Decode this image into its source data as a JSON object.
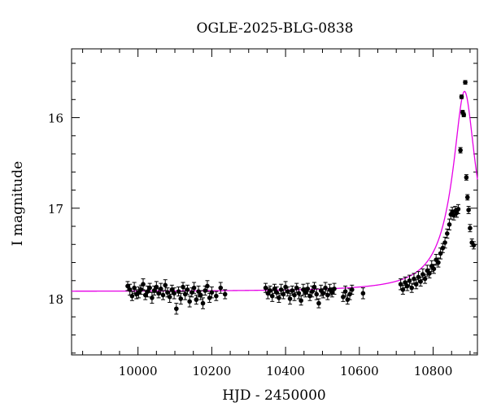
{
  "chart_data": {
    "type": "scatter",
    "title": "OGLE-2025-BLG-0838",
    "xlabel": "HJD - 2450000",
    "ylabel": "I magnitude",
    "xlim": [
      9820,
      10920
    ],
    "ylim": [
      18.62,
      15.24
    ],
    "y_inverted": true,
    "x_ticks": [
      10000,
      10200,
      10400,
      10600,
      10800
    ],
    "y_ticks": [
      16,
      17,
      18
    ],
    "grid": false,
    "legend": "none",
    "colors": {
      "data": "#000000",
      "model": "#e600e6",
      "axes": "#000000"
    },
    "series": [
      {
        "kind": "points_with_errorbars",
        "points": [
          [
            9972,
            17.86,
            0.05
          ],
          [
            9978,
            17.9,
            0.06
          ],
          [
            9984,
            17.97,
            0.05
          ],
          [
            9990,
            17.88,
            0.06
          ],
          [
            9996,
            17.95,
            0.05
          ],
          [
            10002,
            17.93,
            0.06
          ],
          [
            10008,
            17.9,
            0.05
          ],
          [
            10014,
            17.84,
            0.06
          ],
          [
            10020,
            17.96,
            0.05
          ],
          [
            10026,
            17.92,
            0.06
          ],
          [
            10032,
            17.88,
            0.05
          ],
          [
            10038,
            17.99,
            0.06
          ],
          [
            10044,
            17.91,
            0.05
          ],
          [
            10050,
            17.87,
            0.06
          ],
          [
            10056,
            17.94,
            0.05
          ],
          [
            10062,
            17.89,
            0.06
          ],
          [
            10068,
            17.96,
            0.05
          ],
          [
            10074,
            17.85,
            0.06
          ],
          [
            10080,
            17.93,
            0.05
          ],
          [
            10086,
            17.98,
            0.06
          ],
          [
            10092,
            17.9,
            0.05
          ],
          [
            10098,
            17.94,
            0.06
          ],
          [
            10104,
            18.11,
            0.06
          ],
          [
            10110,
            17.92,
            0.05
          ],
          [
            10116,
            18.0,
            0.06
          ],
          [
            10122,
            17.87,
            0.05
          ],
          [
            10128,
            17.95,
            0.06
          ],
          [
            10134,
            17.9,
            0.05
          ],
          [
            10140,
            18.03,
            0.06
          ],
          [
            10146,
            17.93,
            0.05
          ],
          [
            10152,
            17.88,
            0.06
          ],
          [
            10158,
            18.01,
            0.05
          ],
          [
            10164,
            17.92,
            0.06
          ],
          [
            10170,
            17.96,
            0.05
          ],
          [
            10176,
            18.05,
            0.06
          ],
          [
            10182,
            17.91,
            0.05
          ],
          [
            10188,
            17.86,
            0.06
          ],
          [
            10194,
            17.99,
            0.05
          ],
          [
            10200,
            17.93,
            0.06
          ],
          [
            10212,
            17.97,
            0.05
          ],
          [
            10224,
            17.88,
            0.06
          ],
          [
            10236,
            17.95,
            0.05
          ],
          [
            10346,
            17.88,
            0.05
          ],
          [
            10352,
            17.94,
            0.06
          ],
          [
            10358,
            17.91,
            0.05
          ],
          [
            10364,
            17.97,
            0.06
          ],
          [
            10370,
            17.89,
            0.05
          ],
          [
            10376,
            17.93,
            0.06
          ],
          [
            10382,
            17.99,
            0.05
          ],
          [
            10388,
            17.9,
            0.06
          ],
          [
            10394,
            17.95,
            0.05
          ],
          [
            10400,
            17.87,
            0.06
          ],
          [
            10406,
            17.92,
            0.05
          ],
          [
            10412,
            18.0,
            0.06
          ],
          [
            10418,
            17.91,
            0.05
          ],
          [
            10424,
            17.96,
            0.06
          ],
          [
            10430,
            17.88,
            0.05
          ],
          [
            10436,
            17.94,
            0.06
          ],
          [
            10442,
            18.02,
            0.05
          ],
          [
            10448,
            17.9,
            0.06
          ],
          [
            10454,
            17.93,
            0.05
          ],
          [
            10460,
            17.89,
            0.06
          ],
          [
            10466,
            17.97,
            0.05
          ],
          [
            10472,
            17.92,
            0.06
          ],
          [
            10478,
            17.87,
            0.05
          ],
          [
            10484,
            17.95,
            0.06
          ],
          [
            10490,
            18.05,
            0.05
          ],
          [
            10496,
            17.91,
            0.06
          ],
          [
            10502,
            17.94,
            0.05
          ],
          [
            10508,
            17.88,
            0.06
          ],
          [
            10514,
            17.96,
            0.05
          ],
          [
            10520,
            17.9,
            0.06
          ],
          [
            10526,
            17.93,
            0.05
          ],
          [
            10532,
            17.89,
            0.06
          ],
          [
            10556,
            17.98,
            0.05
          ],
          [
            10562,
            17.92,
            0.06
          ],
          [
            10568,
            18.01,
            0.05
          ],
          [
            10574,
            17.95,
            0.06
          ],
          [
            10580,
            17.9,
            0.05
          ],
          [
            10610,
            17.94,
            0.06
          ],
          [
            10712,
            17.84,
            0.06
          ],
          [
            10718,
            17.9,
            0.05
          ],
          [
            10724,
            17.82,
            0.06
          ],
          [
            10730,
            17.86,
            0.05
          ],
          [
            10736,
            17.8,
            0.06
          ],
          [
            10742,
            17.88,
            0.05
          ],
          [
            10748,
            17.78,
            0.06
          ],
          [
            10754,
            17.84,
            0.05
          ],
          [
            10760,
            17.76,
            0.06
          ],
          [
            10766,
            17.81,
            0.05
          ],
          [
            10772,
            17.73,
            0.06
          ],
          [
            10778,
            17.78,
            0.05
          ],
          [
            10784,
            17.69,
            0.06
          ],
          [
            10790,
            17.72,
            0.05
          ],
          [
            10796,
            17.64,
            0.06
          ],
          [
            10802,
            17.67,
            0.05
          ],
          [
            10808,
            17.57,
            0.06
          ],
          [
            10814,
            17.6,
            0.05
          ],
          [
            10820,
            17.5,
            0.06
          ],
          [
            10826,
            17.44,
            0.05
          ],
          [
            10832,
            17.38,
            0.06
          ],
          [
            10838,
            17.28,
            0.05
          ],
          [
            10844,
            17.18,
            0.06
          ],
          [
            10848,
            17.07,
            0.05
          ],
          [
            10852,
            17.04,
            0.05
          ],
          [
            10856,
            17.08,
            0.05
          ],
          [
            10860,
            17.03,
            0.05
          ],
          [
            10864,
            17.05,
            0.05
          ],
          [
            10868,
            17.01,
            0.05
          ],
          [
            10874,
            16.36,
            0.03
          ],
          [
            10877,
            15.77,
            0.02
          ],
          [
            10880,
            15.94,
            0.02
          ],
          [
            10883,
            15.97,
            0.02
          ],
          [
            10887,
            15.61,
            0.02
          ],
          [
            10890,
            16.66,
            0.03
          ],
          [
            10893,
            16.88,
            0.03
          ],
          [
            10896,
            17.02,
            0.04
          ],
          [
            10900,
            17.22,
            0.04
          ],
          [
            10905,
            17.38,
            0.04
          ],
          [
            10910,
            17.41,
            0.04
          ]
        ]
      },
      {
        "kind": "model_curve",
        "baseline_mag": 17.92,
        "peak_time": 10885,
        "peak_mag": 15.71,
        "timescale_days": 24
      }
    ]
  }
}
